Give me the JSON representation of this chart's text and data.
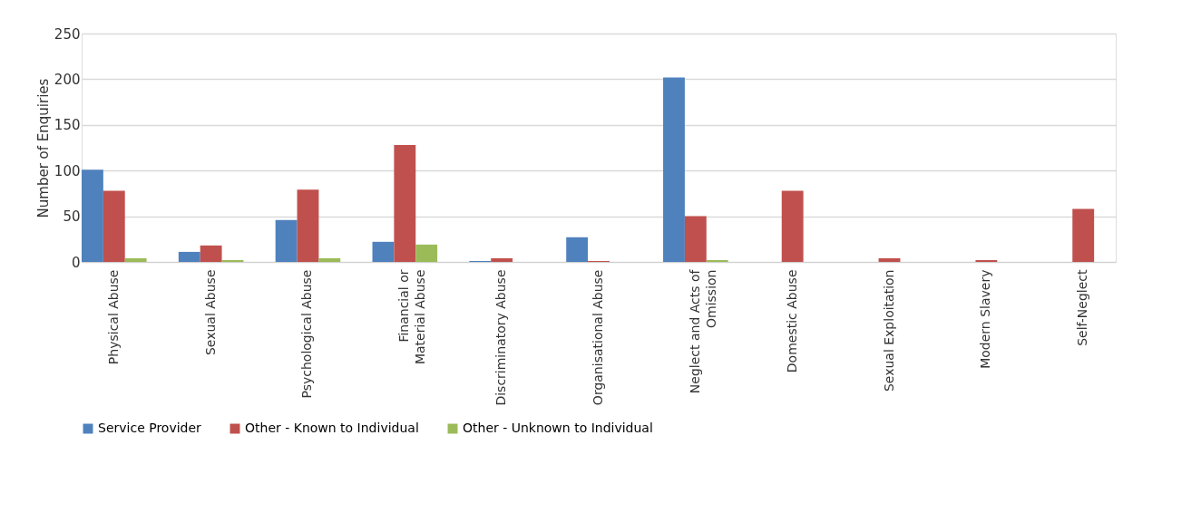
{
  "chart_data": {
    "type": "bar",
    "ylabel": "Number of Enquiries",
    "categories": [
      "Physical Abuse",
      "Sexual Abuse",
      "Psychological Abuse",
      "Financial or Material Abuse",
      "Discriminatory Abuse",
      "Organisational Abuse",
      "Neglect and Acts of Omission",
      "Domestic Abuse",
      "Sexual Exploitation",
      "Modern Slavery",
      "Self-Neglect"
    ],
    "series": [
      {
        "name": "Service Provider",
        "color": "#4f81bd",
        "values": [
          101,
          11,
          46,
          22,
          1,
          27,
          202,
          0,
          0,
          0,
          0
        ]
      },
      {
        "name": "Other - Known to Individual",
        "color": "#c0504d",
        "values": [
          78,
          18,
          79,
          128,
          4,
          1,
          50,
          78,
          4,
          2,
          58
        ]
      },
      {
        "name": "Other - Unknown to Individual",
        "color": "#9bbb59",
        "values": [
          4,
          2,
          4,
          19,
          0,
          0,
          2,
          0,
          0,
          0,
          0
        ]
      }
    ],
    "ylim": [
      0,
      250
    ],
    "yticks": [
      0,
      50,
      100,
      150,
      200,
      250
    ],
    "grid": "y",
    "legend": "bottom"
  }
}
